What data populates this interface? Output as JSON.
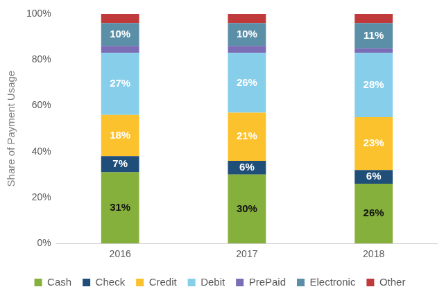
{
  "chart_data": {
    "type": "bar",
    "stacked": true,
    "y_label": "Share of Payment Usage",
    "categories": [
      "2016",
      "2017",
      "2018"
    ],
    "ylim": [
      0,
      100
    ],
    "yticks": [
      {
        "value": 0,
        "label": "0%"
      },
      {
        "value": 20,
        "label": "20%"
      },
      {
        "value": 40,
        "label": "40%"
      },
      {
        "value": 60,
        "label": "60%"
      },
      {
        "value": 80,
        "label": "80%"
      },
      {
        "value": 100,
        "label": "100%"
      }
    ],
    "grid": false,
    "legend": "bottom",
    "series": [
      {
        "name": "Cash",
        "color": "#86b03c",
        "values": [
          31,
          30,
          26
        ],
        "data_labels": true,
        "value_labels": [
          "31%",
          "30%",
          "26%"
        ]
      },
      {
        "name": "Check",
        "color": "#1f4e79",
        "values": [
          7,
          6,
          6
        ],
        "data_labels": true,
        "value_labels": [
          "7%",
          "6%",
          "6%"
        ]
      },
      {
        "name": "Credit",
        "color": "#fcc22d",
        "values": [
          18,
          21,
          23
        ],
        "data_labels": true,
        "value_labels": [
          "18%",
          "21%",
          "23%"
        ]
      },
      {
        "name": "Debit",
        "color": "#87ceeb",
        "values": [
          27,
          26,
          28
        ],
        "data_labels": true,
        "value_labels": [
          "27%",
          "26%",
          "28%"
        ]
      },
      {
        "name": "PrePaid",
        "color": "#7b6cb6",
        "values": [
          3,
          3,
          2
        ],
        "data_labels": false
      },
      {
        "name": "Electronic",
        "color": "#5b8fa8",
        "values": [
          10,
          10,
          11
        ],
        "data_labels": true,
        "value_labels": [
          "10%",
          "10%",
          "11%"
        ]
      },
      {
        "name": "Other",
        "color": "#c0393b",
        "values": [
          4,
          4,
          4
        ],
        "data_labels": false
      }
    ]
  }
}
